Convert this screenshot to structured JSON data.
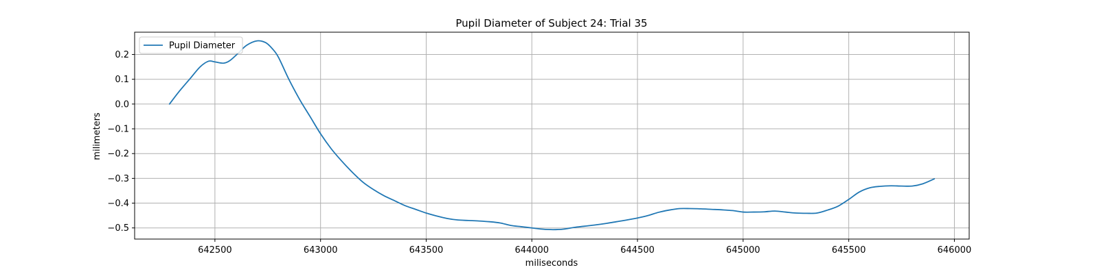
{
  "chart_data": {
    "type": "line",
    "title": "Pupil Diameter of Subject 24: Trial 35",
    "xlabel": "miliseconds",
    "ylabel": "milimeters",
    "xlim": [
      642120,
      646070
    ],
    "ylim": [
      -0.545,
      0.29
    ],
    "xticks": [
      642500,
      643000,
      643500,
      644000,
      644500,
      645000,
      645500,
      646000
    ],
    "yticks": [
      0.2,
      0.1,
      0.0,
      -0.1,
      -0.2,
      -0.3,
      -0.4,
      -0.5
    ],
    "xtick_labels": [
      "642500",
      "643000",
      "643500",
      "644000",
      "644500",
      "645000",
      "645500",
      "646000"
    ],
    "ytick_labels": [
      "0.2",
      "0.1",
      "0.0",
      "−0.1",
      "−0.2",
      "−0.3",
      "−0.4",
      "−0.5"
    ],
    "grid": true,
    "legend_position": "top-left",
    "series": [
      {
        "name": "Pupil Diameter",
        "color": "#1f77b4",
        "x": [
          642285,
          642330,
          642380,
          642430,
          642470,
          642500,
          642540,
          642570,
          642610,
          642650,
          642700,
          642740,
          642770,
          642800,
          642850,
          642900,
          642950,
          643000,
          643050,
          643100,
          643150,
          643200,
          643250,
          643300,
          643350,
          643400,
          643450,
          643500,
          643550,
          643600,
          643650,
          643700,
          643750,
          643800,
          643850,
          643900,
          643950,
          644000,
          644050,
          644100,
          644150,
          644200,
          644250,
          644300,
          644350,
          644400,
          644450,
          644500,
          644550,
          644600,
          644650,
          644700,
          644750,
          644800,
          644850,
          644900,
          644950,
          645000,
          645050,
          645100,
          645150,
          645200,
          645250,
          645300,
          645350,
          645400,
          645450,
          645500,
          645550,
          645600,
          645650,
          645700,
          645750,
          645800,
          645850,
          645905
        ],
        "y": [
          0.0,
          0.05,
          0.1,
          0.15,
          0.173,
          0.17,
          0.165,
          0.175,
          0.205,
          0.237,
          0.255,
          0.248,
          0.225,
          0.19,
          0.1,
          0.02,
          -0.05,
          -0.12,
          -0.18,
          -0.23,
          -0.275,
          -0.315,
          -0.345,
          -0.37,
          -0.39,
          -0.41,
          -0.425,
          -0.44,
          -0.452,
          -0.462,
          -0.468,
          -0.47,
          -0.472,
          -0.475,
          -0.48,
          -0.49,
          -0.495,
          -0.5,
          -0.505,
          -0.507,
          -0.505,
          -0.498,
          -0.493,
          -0.488,
          -0.482,
          -0.475,
          -0.468,
          -0.46,
          -0.45,
          -0.437,
          -0.428,
          -0.422,
          -0.422,
          -0.423,
          -0.425,
          -0.427,
          -0.43,
          -0.436,
          -0.436,
          -0.435,
          -0.432,
          -0.436,
          -0.44,
          -0.441,
          -0.44,
          -0.428,
          -0.412,
          -0.385,
          -0.355,
          -0.338,
          -0.332,
          -0.33,
          -0.331,
          -0.331,
          -0.322,
          -0.302
        ]
      }
    ]
  }
}
